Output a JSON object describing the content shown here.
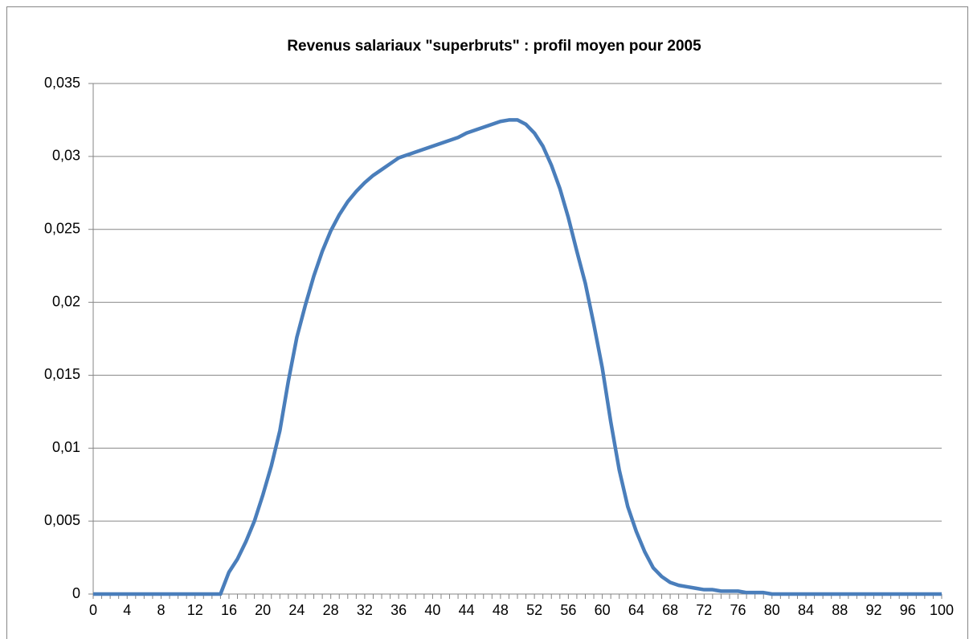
{
  "chart_data": {
    "type": "line",
    "title": "Revenus salariaux \"superbruts\" : profil moyen pour 2005",
    "categories": [
      "0",
      null,
      null,
      null,
      "4",
      null,
      null,
      null,
      "8",
      null,
      null,
      null,
      "12",
      null,
      null,
      null,
      "16",
      null,
      null,
      null,
      "20",
      null,
      null,
      null,
      "24",
      null,
      null,
      null,
      "28",
      null,
      null,
      null,
      "32",
      null,
      null,
      null,
      "36",
      null,
      null,
      null,
      "40",
      null,
      null,
      null,
      "44",
      null,
      null,
      null,
      "48",
      null,
      null,
      null,
      "52",
      null,
      null,
      null,
      "56",
      null,
      null,
      null,
      "60",
      null,
      null,
      null,
      "64",
      null,
      null,
      null,
      "68",
      null,
      null,
      null,
      "72",
      null,
      null,
      null,
      "76",
      null,
      null,
      null,
      "80",
      null,
      null,
      null,
      "84",
      null,
      null,
      null,
      "88",
      null,
      null,
      null,
      "92",
      null,
      null,
      null,
      "96",
      null,
      null,
      null,
      "100"
    ],
    "series": [
      {
        "color": "#4a7ebb",
        "values": [
          0,
          0,
          0,
          0,
          0,
          0,
          0,
          0,
          0,
          0,
          0,
          0,
          0,
          0,
          0,
          0,
          0.0015,
          0.0024,
          0.0036,
          0.005,
          0.0068,
          0.0088,
          0.0112,
          0.0146,
          0.0176,
          0.0198,
          0.0218,
          0.0235,
          0.0249,
          0.026,
          0.0269,
          0.0276,
          0.0282,
          0.0287,
          0.0291,
          0.0295,
          0.0299,
          0.0301,
          0.0303,
          0.0305,
          0.0307,
          0.0309,
          0.0311,
          0.0313,
          0.0316,
          0.0318,
          0.032,
          0.0322,
          0.0324,
          0.0325,
          0.0325,
          0.0322,
          0.0316,
          0.0307,
          0.0294,
          0.0278,
          0.0258,
          0.0235,
          0.0213,
          0.0185,
          0.0155,
          0.0118,
          0.0085,
          0.006,
          0.0043,
          0.0029,
          0.0018,
          0.0012,
          0.0008,
          0.0006,
          0.0005,
          0.0004,
          0.0003,
          0.0003,
          0.0002,
          0.0002,
          0.0002,
          0.0001,
          0.0001,
          0.0001,
          0,
          0,
          0,
          0,
          0,
          0,
          0,
          0,
          0,
          0,
          0,
          0,
          0,
          0,
          0,
          0,
          0,
          0,
          0,
          0,
          0
        ]
      }
    ],
    "ylim": [
      0,
      0.035
    ],
    "yticks": [
      0,
      {
        "value": 0.005,
        "label": "0,005"
      },
      {
        "value": 0.01,
        "label": "0,01"
      },
      {
        "value": 0.015,
        "label": "0,015"
      },
      {
        "value": 0.02,
        "label": "0,02"
      },
      {
        "value": 0.025,
        "label": "0,025"
      },
      {
        "value": 0.03,
        "label": "0,03"
      },
      {
        "value": 0.035,
        "label": "0,035"
      }
    ],
    "grid": true
  }
}
